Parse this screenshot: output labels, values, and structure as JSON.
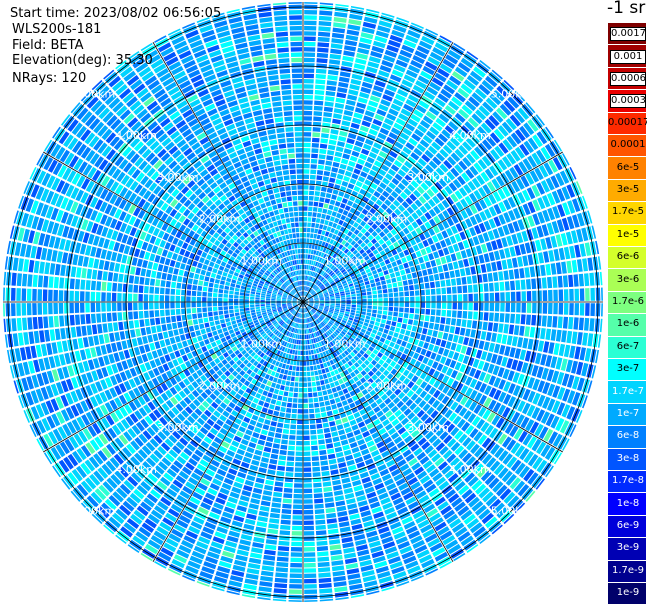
{
  "header": {
    "start_time": "Start time: 2023/08/02 06:56:05",
    "instrument": "WLS200s-181",
    "field": "Field: BETA",
    "elevation": "Elevation(deg): 35.30",
    "nrays": "NRays: 120"
  },
  "colorbar": {
    "unit_title": "-1 sr",
    "levels": [
      {
        "label": "0.0017",
        "color": "#7f0000"
      },
      {
        "label": "0.001",
        "color": "#a00000"
      },
      {
        "label": "0.0006",
        "color": "#c40000"
      },
      {
        "label": "0.0003",
        "color": "#ea0000"
      },
      {
        "label": "0.00017",
        "color": "#ff2a00"
      },
      {
        "label": "0.0001",
        "color": "#ff5500"
      },
      {
        "label": "6e-5",
        "color": "#ff8200"
      },
      {
        "label": "3e-5",
        "color": "#ffab00"
      },
      {
        "label": "1.7e-5",
        "color": "#ffd600"
      },
      {
        "label": "1e-5",
        "color": "#ffff00"
      },
      {
        "label": "6e-6",
        "color": "#d4ff2b"
      },
      {
        "label": "3e-6",
        "color": "#aaff55"
      },
      {
        "label": "1.7e-6",
        "color": "#7dff80"
      },
      {
        "label": "1e-6",
        "color": "#55ffaa"
      },
      {
        "label": "6e-7",
        "color": "#2bffd4"
      },
      {
        "label": "3e-7",
        "color": "#00ffff"
      },
      {
        "label": "1.7e-7",
        "color": "#00d4ff"
      },
      {
        "label": "1e-7",
        "color": "#00aaff"
      },
      {
        "label": "6e-8",
        "color": "#0080ff"
      },
      {
        "label": "3e-8",
        "color": "#0055ff"
      },
      {
        "label": "1.7e-8",
        "color": "#002aff"
      },
      {
        "label": "1e-8",
        "color": "#0000ff"
      },
      {
        "label": "6e-9",
        "color": "#0000da"
      },
      {
        "label": "3e-9",
        "color": "#0000b4"
      },
      {
        "label": "1.7e-9",
        "color": "#00008f"
      },
      {
        "label": "1e-9",
        "color": "#00006a"
      }
    ]
  },
  "chart_data": {
    "type": "heatmap",
    "projection": "polar PPI scan",
    "field": "BETA",
    "elevation_deg": 35.3,
    "n_rays": 120,
    "range_rings_km": [
      1,
      2,
      3,
      4,
      5
    ],
    "range_ring_labels": [
      "1.00km",
      "2.00km",
      "3.00km",
      "4.00km",
      "5.00km"
    ],
    "azimuth_spokes_deg": [
      0,
      30,
      60,
      90,
      120,
      150,
      180,
      210,
      240,
      270,
      300,
      330
    ],
    "max_range_km": 5.0,
    "dominant_color_range": "3e-8 to 3e-7",
    "colorscale": "jet"
  }
}
